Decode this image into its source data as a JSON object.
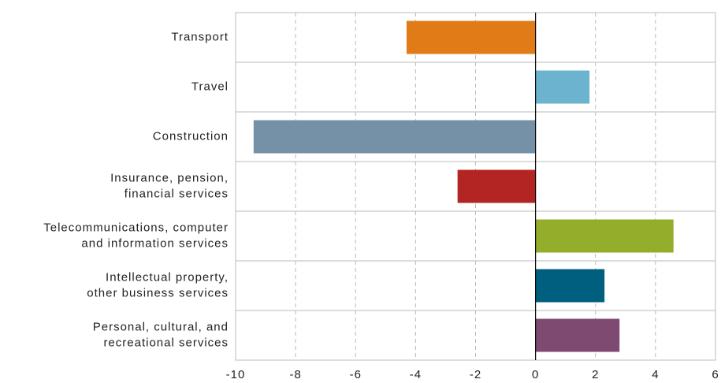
{
  "chart_data": {
    "type": "hbar",
    "categories": [
      [
        "Transport"
      ],
      [
        "Travel"
      ],
      [
        "Construction"
      ],
      [
        "Insurance, pension,",
        "financial services"
      ],
      [
        "Telecommunications, computer",
        "and information services"
      ],
      [
        "Intellectual property,",
        "other business services"
      ],
      [
        "Personal, cultural, and",
        "recreational services"
      ]
    ],
    "values": [
      -4.3,
      1.8,
      -9.4,
      -2.6,
      4.6,
      2.3,
      2.8
    ],
    "colors": [
      "#e07b17",
      "#6cb3d0",
      "#7591a8",
      "#b32523",
      "#94ad2a",
      "#005f7f",
      "#7e4a72"
    ],
    "xlim": [
      -10,
      6
    ],
    "xticks": [
      -10,
      -8,
      -6,
      -4,
      -2,
      0,
      2,
      4,
      6
    ],
    "grid": true
  }
}
